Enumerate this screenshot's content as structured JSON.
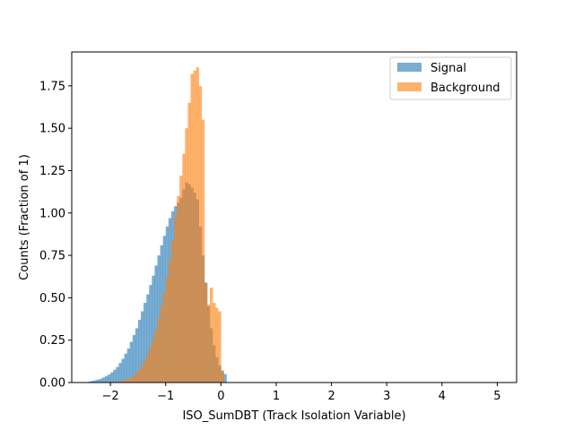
{
  "chart_data": {
    "type": "histogram",
    "xlabel": "ISO_SumDBT (Track Isolation Variable)",
    "ylabel": "Counts (Fraction of 1)",
    "xlim": [
      -2.7,
      5.35
    ],
    "ylim": [
      0,
      1.95
    ],
    "x_ticks": [
      -2,
      -1,
      0,
      1,
      2,
      3,
      4,
      5
    ],
    "y_ticks": [
      0.0,
      0.25,
      0.5,
      0.75,
      1.0,
      1.25,
      1.5,
      1.75
    ],
    "x_tick_labels": [
      "−2",
      "−1",
      "0",
      "1",
      "2",
      "3",
      "4",
      "5"
    ],
    "y_tick_labels": [
      "0.00",
      "0.25",
      "0.50",
      "0.75",
      "1.00",
      "1.25",
      "1.50",
      "1.75"
    ],
    "legend_position": "upper right",
    "bin_width": 0.05,
    "series": [
      {
        "name": "Signal",
        "color": "#1f77b4",
        "alpha": 0.6,
        "bin_start": -2.4,
        "values": [
          0.005,
          0.01,
          0.013,
          0.017,
          0.022,
          0.03,
          0.038,
          0.047,
          0.06,
          0.075,
          0.092,
          0.115,
          0.14,
          0.17,
          0.2,
          0.24,
          0.28,
          0.32,
          0.37,
          0.42,
          0.47,
          0.52,
          0.575,
          0.63,
          0.69,
          0.75,
          0.81,
          0.865,
          0.92,
          0.97,
          1.01,
          1.04,
          1.06,
          1.09,
          1.14,
          1.18,
          1.17,
          1.15,
          1.12,
          1.08,
          0.92,
          0.75,
          0.59,
          0.45,
          0.32,
          0.22,
          0.15,
          0.1,
          0.07,
          0.05
        ]
      },
      {
        "name": "Background",
        "color": "#ff7f0e",
        "alpha": 0.6,
        "bin_start": -1.95,
        "values": [
          0.003,
          0.006,
          0.008,
          0.011,
          0.016,
          0.022,
          0.03,
          0.04,
          0.055,
          0.075,
          0.1,
          0.13,
          0.17,
          0.21,
          0.26,
          0.31,
          0.38,
          0.45,
          0.53,
          0.62,
          0.72,
          0.84,
          0.98,
          1.1,
          1.22,
          1.35,
          1.5,
          1.65,
          1.82,
          1.84,
          1.86,
          1.75,
          1.55,
          0.58,
          0.46,
          0.56,
          0.47,
          0.44,
          0.42,
          0.07
        ]
      }
    ]
  }
}
